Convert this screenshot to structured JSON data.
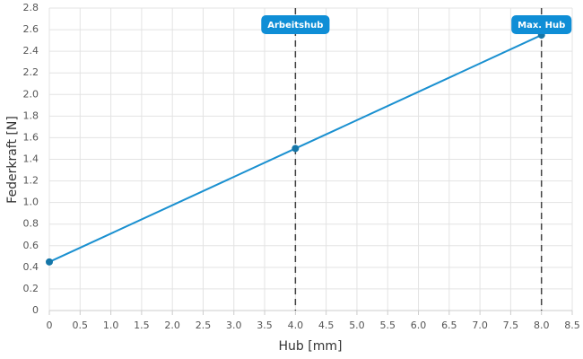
{
  "chart_data": {
    "type": "line",
    "xlabel": "Hub [mm]",
    "ylabel": "Federkraft [N]",
    "x": [
      0,
      4,
      8
    ],
    "values": [
      0.45,
      1.5,
      2.55
    ],
    "color": "#1a90d0",
    "marker_color": "#1576a8",
    "xlim": [
      0,
      8.5
    ],
    "xticks": [
      0,
      0.5,
      {
        "value": 1,
        "label": "1.0"
      },
      1.5,
      {
        "value": 2,
        "label": "2.0"
      },
      2.5,
      {
        "value": 3,
        "label": "3.0"
      },
      3.5,
      {
        "value": 4,
        "label": "4.0"
      },
      4.5,
      {
        "value": 5,
        "label": "5.0"
      },
      5.5,
      {
        "value": 6,
        "label": "6.0"
      },
      6.5,
      {
        "value": 7,
        "label": "7.0"
      },
      7.5,
      {
        "value": 8,
        "label": "8.0"
      },
      8.5
    ],
    "ylim": [
      0,
      2.8
    ],
    "yticks": [
      0,
      0.2,
      0.4,
      0.6,
      0.8,
      {
        "value": 1,
        "label": "1.0"
      },
      1.2,
      1.4,
      1.6,
      1.8,
      {
        "value": 2,
        "label": "2.0"
      },
      2.2,
      2.4,
      2.6,
      2.8
    ],
    "grid": true,
    "annotations": [
      {
        "x": 4,
        "label": "Arbeitshub"
      },
      {
        "x": 8,
        "label": "Max. Hub"
      }
    ]
  }
}
